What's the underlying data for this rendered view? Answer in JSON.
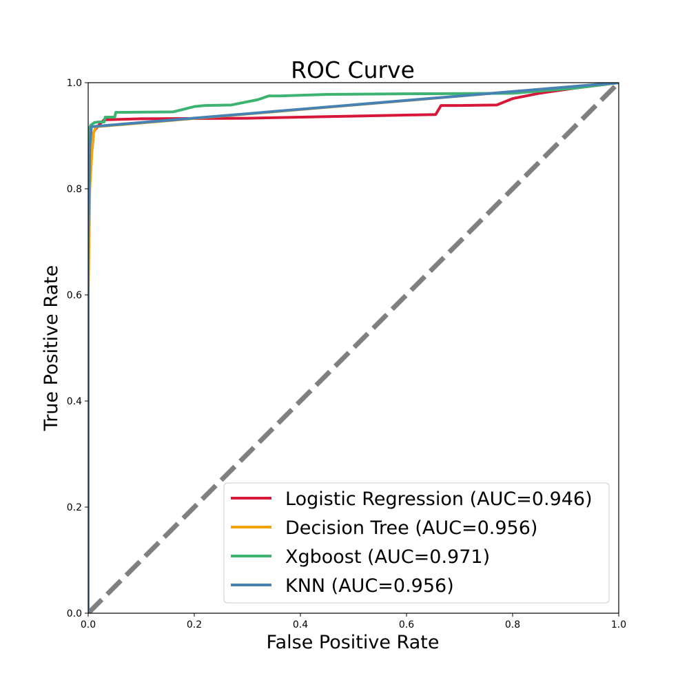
{
  "chart_data": {
    "type": "line",
    "title": "ROC Curve",
    "xlabel": "False Positive Rate",
    "ylabel": "True Positive Rate",
    "xlim": [
      0.0,
      1.0
    ],
    "ylim": [
      0.0,
      1.0
    ],
    "xticks": [
      "0.0",
      "0.2",
      "0.4",
      "0.6",
      "0.8",
      "1.0"
    ],
    "yticks": [
      "0.0",
      "0.2",
      "0.4",
      "0.6",
      "0.8",
      "1.0"
    ],
    "grid": false,
    "legend_position": "lower-right",
    "series": [
      {
        "name": "Logistic Regression (AUC=0.946)",
        "color": "#d6173a",
        "x": [
          0.0,
          0.0,
          0.005,
          0.008,
          0.01,
          0.012,
          0.02,
          0.03,
          0.1,
          0.3,
          0.45,
          0.6,
          0.655,
          0.665,
          0.7,
          0.77,
          0.8,
          0.85,
          0.92,
          1.0
        ],
        "y": [
          0.0,
          0.83,
          0.86,
          0.88,
          0.905,
          0.91,
          0.92,
          0.93,
          0.932,
          0.933,
          0.936,
          0.939,
          0.94,
          0.957,
          0.957,
          0.958,
          0.97,
          0.98,
          0.99,
          1.0
        ]
      },
      {
        "name": "Decision Tree (AUC=0.956)",
        "color": "#f5a30a",
        "x": [
          0.0,
          0.0,
          0.003,
          0.007,
          0.01,
          0.015,
          1.0
        ],
        "y": [
          0.0,
          0.6,
          0.8,
          0.87,
          0.905,
          0.917,
          1.0
        ]
      },
      {
        "name": "Xgboost (AUC=0.971)",
        "color": "#3cb371",
        "x": [
          0.0,
          0.0,
          0.005,
          0.012,
          0.02,
          0.03,
          0.032,
          0.05,
          0.052,
          0.16,
          0.2,
          0.22,
          0.27,
          0.32,
          0.34,
          0.36,
          0.45,
          0.6,
          0.8,
          0.92,
          1.0
        ],
        "y": [
          0.0,
          0.91,
          0.92,
          0.925,
          0.926,
          0.926,
          0.935,
          0.935,
          0.944,
          0.945,
          0.955,
          0.957,
          0.958,
          0.968,
          0.975,
          0.975,
          0.978,
          0.979,
          0.98,
          0.99,
          1.0
        ]
      },
      {
        "name": "KNN (AUC=0.956)",
        "color": "#4682b4",
        "x": [
          0.0,
          0.0,
          0.003,
          0.006,
          1.0
        ],
        "y": [
          0.0,
          0.7,
          0.88,
          0.917,
          1.0
        ]
      }
    ],
    "reference_line": {
      "x": [
        0.0,
        1.0
      ],
      "y": [
        0.0,
        1.0
      ],
      "color": "#808080",
      "style": "dashed"
    }
  }
}
